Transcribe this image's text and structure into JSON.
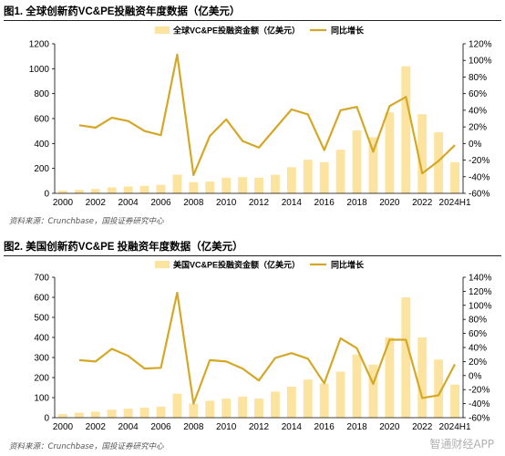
{
  "charts": [
    {
      "figure_title": "图1. 全球创新药VC&PE投融资年度数据（亿美元）",
      "source": "资料来源：Crunchbase，国投证券研究中心"
    },
    {
      "figure_title": "图2. 美国创新药VC&PE 投融资年度数据（亿美元）",
      "source": "资料来源：Crunchbase，国投证券研究中心"
    }
  ],
  "watermark": "智通财经APP",
  "colors": {
    "bar": "#fce4a0",
    "line": "#d4a826",
    "axis": "#000000",
    "text": "#000000"
  },
  "chart_data": [
    {
      "type": "bar+line",
      "categories": [
        "2000",
        "2001",
        "2002",
        "2003",
        "2004",
        "2005",
        "2006",
        "2007",
        "2008",
        "2009",
        "2010",
        "2011",
        "2012",
        "2013",
        "2014",
        "2015",
        "2016",
        "2017",
        "2018",
        "2019",
        "2020",
        "2021",
        "2022",
        "2023",
        "2024H1"
      ],
      "x_tick_labels": [
        "2000",
        "",
        "2002",
        "",
        "2004",
        "",
        "2006",
        "",
        "2008",
        "",
        "2010",
        "",
        "2012",
        "",
        "2014",
        "",
        "2016",
        "",
        "2018",
        "",
        "2020",
        "",
        "2022",
        "",
        "2024H1"
      ],
      "series": [
        {
          "name": "全球VC&PE投融资金额（亿美元）",
          "type": "bar",
          "axis": "left",
          "values": [
            22,
            28,
            35,
            48,
            55,
            60,
            68,
            150,
            90,
            95,
            125,
            130,
            125,
            150,
            210,
            270,
            250,
            350,
            505,
            450,
            650,
            1020,
            635,
            490,
            250
          ]
        },
        {
          "name": "同比增长",
          "type": "line",
          "axis": "right",
          "values": [
            null,
            22,
            19,
            31,
            27,
            15,
            10,
            107,
            -38,
            9,
            29,
            3,
            -5,
            18,
            41,
            35,
            -8,
            40,
            44,
            -10,
            45,
            56,
            -36,
            -21,
            -2
          ]
        }
      ],
      "y_left": {
        "min": 0,
        "max": 1200,
        "ticks": [
          "0",
          "200",
          "400",
          "600",
          "800",
          "1000",
          "1200"
        ]
      },
      "y_right": {
        "min": -60,
        "max": 120,
        "ticks": [
          "-60%",
          "-40%",
          "-20%",
          "0%",
          "20%",
          "40%",
          "60%",
          "80%",
          "100%",
          "120%"
        ]
      },
      "legend_position": "top",
      "grid": false
    },
    {
      "type": "bar+line",
      "categories": [
        "2000",
        "2001",
        "2002",
        "2003",
        "2004",
        "2005",
        "2006",
        "2007",
        "2008",
        "2009",
        "2010",
        "2011",
        "2012",
        "2013",
        "2014",
        "2015",
        "2016",
        "2017",
        "2018",
        "2019",
        "2020",
        "2021",
        "2022",
        "2023",
        "2024H1"
      ],
      "x_tick_labels": [
        "2000",
        "",
        "2002",
        "",
        "2004",
        "",
        "2006",
        "",
        "2008",
        "",
        "2010",
        "",
        "2012",
        "",
        "2014",
        "",
        "2016",
        "",
        "2018",
        "",
        "2020",
        "",
        "2022",
        "",
        "2024H1"
      ],
      "series": [
        {
          "name": "美国VC&PE投融资金额（亿美元）",
          "type": "bar",
          "axis": "left",
          "values": [
            18,
            25,
            30,
            40,
            45,
            50,
            55,
            120,
            70,
            85,
            95,
            105,
            95,
            130,
            155,
            190,
            170,
            230,
            315,
            265,
            400,
            600,
            400,
            290,
            165
          ]
        },
        {
          "name": "同比增长",
          "type": "line",
          "axis": "right",
          "values": [
            null,
            22,
            20,
            38,
            28,
            10,
            11,
            118,
            -40,
            22,
            20,
            10,
            -7,
            25,
            32,
            24,
            -11,
            53,
            39,
            -12,
            51,
            51,
            -32,
            -28,
            16
          ]
        }
      ],
      "y_left": {
        "min": 0,
        "max": 700,
        "ticks": [
          "0",
          "100",
          "200",
          "300",
          "400",
          "500",
          "600",
          "700"
        ]
      },
      "y_right": {
        "min": -60,
        "max": 140,
        "ticks": [
          "-60%",
          "-40%",
          "-20%",
          "0%",
          "20%",
          "40%",
          "60%",
          "80%",
          "100%",
          "120%",
          "140%"
        ]
      },
      "legend_position": "top",
      "grid": false
    }
  ]
}
